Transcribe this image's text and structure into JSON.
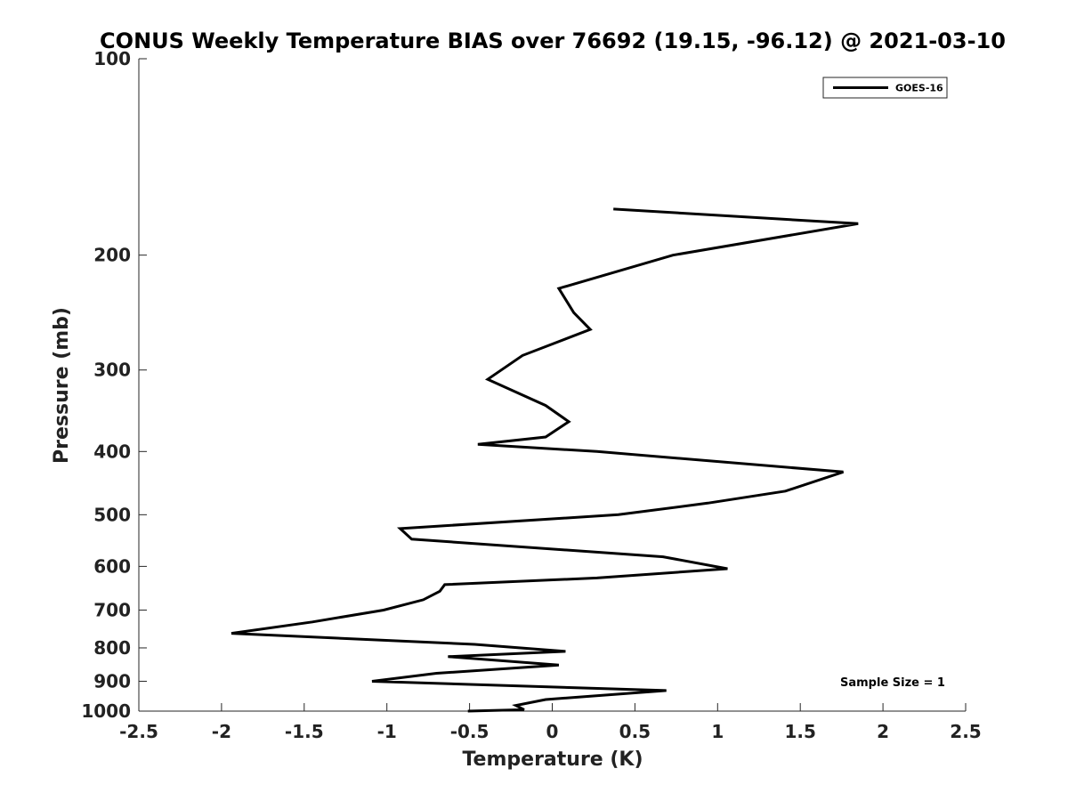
{
  "chart_data": {
    "type": "line",
    "title": "CONUS Weekly Temperature BIAS over 76692 (19.15, -96.12) @ 2021-03-10",
    "xlabel": "Temperature (K)",
    "ylabel": "Pressure (mb)",
    "xlim": [
      -2.5,
      2.5
    ],
    "ylim": [
      100,
      1000
    ],
    "y_scale": "log",
    "y_reversed": true,
    "xticks": [
      "-2.5",
      "-2",
      "-1.5",
      "-1",
      "-0.5",
      "0",
      "0.5",
      "1",
      "1.5",
      "2",
      "2.5"
    ],
    "xtick_values": [
      -2.5,
      -2,
      -1.5,
      -1,
      -0.5,
      0,
      0.5,
      1,
      1.5,
      2,
      2.5
    ],
    "yticks": [
      "100",
      "200",
      "300",
      "400",
      "500",
      "600",
      "700",
      "800",
      "900",
      "1000"
    ],
    "ytick_values": [
      100,
      200,
      300,
      400,
      500,
      600,
      700,
      800,
      900,
      1000
    ],
    "grid": false,
    "legend_position": "top-right",
    "annotation": "Sample Size = 1",
    "series": [
      {
        "name": "GOES-16",
        "color": "#000000",
        "x": [
          0.37,
          1.85,
          0.73,
          0.04,
          0.13,
          0.23,
          -0.18,
          -0.39,
          -0.04,
          0.1,
          -0.04,
          -0.45,
          0.27,
          1.76,
          1.41,
          0.94,
          0.4,
          -0.92,
          -0.85,
          0.67,
          1.06,
          0.27,
          -0.65,
          -0.68,
          -0.78,
          -1.02,
          -1.45,
          -1.94,
          -0.47,
          0.08,
          -0.63,
          0.04,
          -0.7,
          -1.09,
          0.69,
          -0.04,
          -0.22,
          -0.17,
          -0.51
        ],
        "y": [
          170,
          179,
          200,
          225,
          245,
          260,
          285,
          310,
          340,
          360,
          380,
          390,
          400,
          430,
          460,
          480,
          500,
          525,
          545,
          580,
          605,
          625,
          640,
          655,
          675,
          700,
          730,
          760,
          790,
          810,
          825,
          850,
          875,
          900,
          930,
          960,
          980,
          995,
          1000
        ]
      }
    ]
  }
}
